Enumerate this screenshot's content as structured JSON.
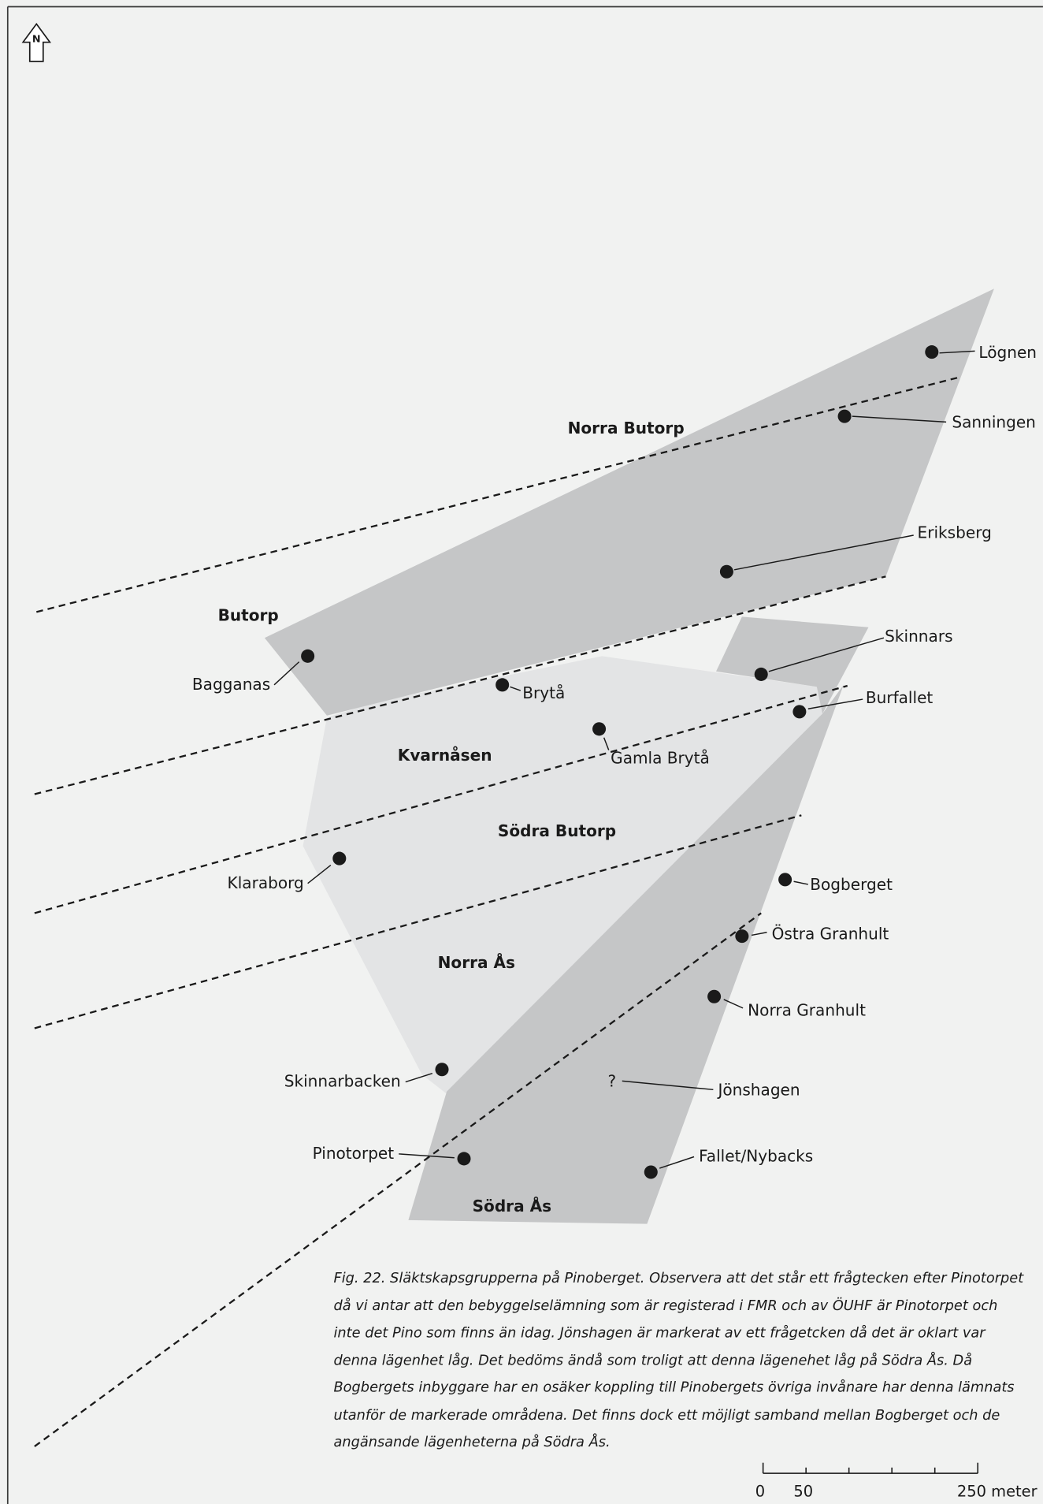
{
  "colors": {
    "background": "#f1f2f1",
    "frame": "#3a3a3a",
    "dark_region": "#c5c6c7",
    "light_region": "#e3e4e5",
    "ink": "#1a1a1a"
  },
  "north_arrow": {
    "label": "N",
    "icon": "north-arrow-icon"
  },
  "groups": [
    {
      "id": "norra-butorp",
      "label": "Norra Butorp"
    },
    {
      "id": "butorp",
      "label": "Butorp"
    },
    {
      "id": "kvarnasen",
      "label": "Kvarnåsen"
    },
    {
      "id": "sodra-butorp",
      "label": "Södra Butorp"
    },
    {
      "id": "norra-as",
      "label": "Norra Ås"
    },
    {
      "id": "sodra-as",
      "label": "Södra Ås"
    }
  ],
  "places": [
    {
      "id": "lognen",
      "label": "Lögnen"
    },
    {
      "id": "sanningen",
      "label": "Sanningen"
    },
    {
      "id": "eriksberg",
      "label": "Eriksberg"
    },
    {
      "id": "skinnars",
      "label": "Skinnars"
    },
    {
      "id": "burfallet",
      "label": "Burfallet"
    },
    {
      "id": "bagganas",
      "label": "Bagganas"
    },
    {
      "id": "bryta",
      "label": "Brytå"
    },
    {
      "id": "gamla-bryta",
      "label": "Gamla Brytå"
    },
    {
      "id": "klaraborg",
      "label": "Klaraborg"
    },
    {
      "id": "bogberget",
      "label": "Bogberget"
    },
    {
      "id": "ostra-granhult",
      "label": "Östra Granhult"
    },
    {
      "id": "norra-granhult",
      "label": "Norra Granhult"
    },
    {
      "id": "skinnarbacken",
      "label": "Skinnarbacken"
    },
    {
      "id": "jonshagen",
      "label": "Jönshagen",
      "marker": "?"
    },
    {
      "id": "pinotorpet",
      "label": "Pinotorpet"
    },
    {
      "id": "fallet-nybacks",
      "label": "Fallet/Nybacks"
    }
  ],
  "caption_lines": [
    "Fig. 22. Släktskapsgrupperna på Pinoberget. Observera att det står ett frågtecken efter Pinotorpet",
    "då vi antar att den bebyggelselämning som är registerad i FMR och av ÖUHF är Pinotorpet och",
    "inte det Pino som finns än idag. Jönshagen är markerat av ett frågetcken då det är oklart var",
    "denna lägenhet låg. Det bedöms ändå som troligt att denna lägenehet låg på Södra Ås. Då",
    "Bogbergets inbyggare har en osäker koppling till Pinobergets övriga invånare har denna lämnats",
    "utanför de markerade områdena. Det finns dock ett möjligt samband mellan Bogberget och de",
    "angänsande lägenheterna på Södra Ås."
  ],
  "scale_bar": {
    "labels": [
      "0",
      "50",
      "250 meter"
    ],
    "max_meters": 250,
    "tick_meters": [
      0,
      50,
      100,
      150,
      200,
      250
    ]
  }
}
